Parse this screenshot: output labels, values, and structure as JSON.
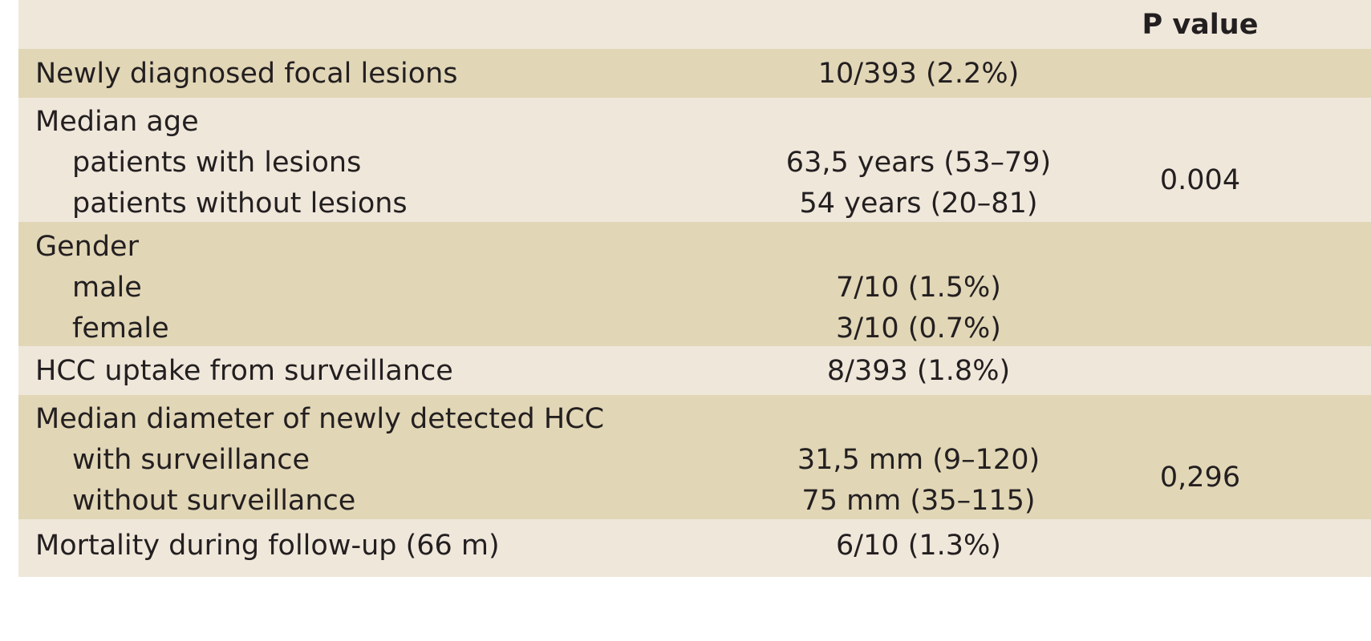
{
  "header": {
    "label": "",
    "value": "",
    "p_value": "P value"
  },
  "rows": [
    {
      "label": "Newly diagnosed focal lesions",
      "value": "10/393 (2.2%)",
      "p_value": ""
    },
    {
      "label": "Median age",
      "sub": [
        {
          "label": "patients with lesions",
          "value": "63,5 years (53–79)"
        },
        {
          "label": "patients without lesions",
          "value": "54 years (20–81)"
        }
      ],
      "p_value": "0.004"
    },
    {
      "label": "Gender",
      "sub": [
        {
          "label": "male",
          "value": "7/10 (1.5%)"
        },
        {
          "label": "female",
          "value": "3/10 (0.7%)"
        }
      ],
      "p_value": ""
    },
    {
      "label": "HCC uptake from surveillance",
      "value": "8/393 (1.8%)",
      "p_value": ""
    },
    {
      "label": "Median diameter of newly detected HCC",
      "sub": [
        {
          "label": "with surveillance",
          "value": "31,5 mm (9–120)"
        },
        {
          "label": "without surveillance",
          "value": "75 mm (35–115)"
        }
      ],
      "p_value": "0,296"
    },
    {
      "label": "Mortality during follow-up (66 m)",
      "value": "6/10 (1.3%)",
      "p_value": ""
    }
  ],
  "colors": {
    "light_row": "#efe7da",
    "dark_row": "#e1d6b6",
    "text": "#231f20"
  }
}
